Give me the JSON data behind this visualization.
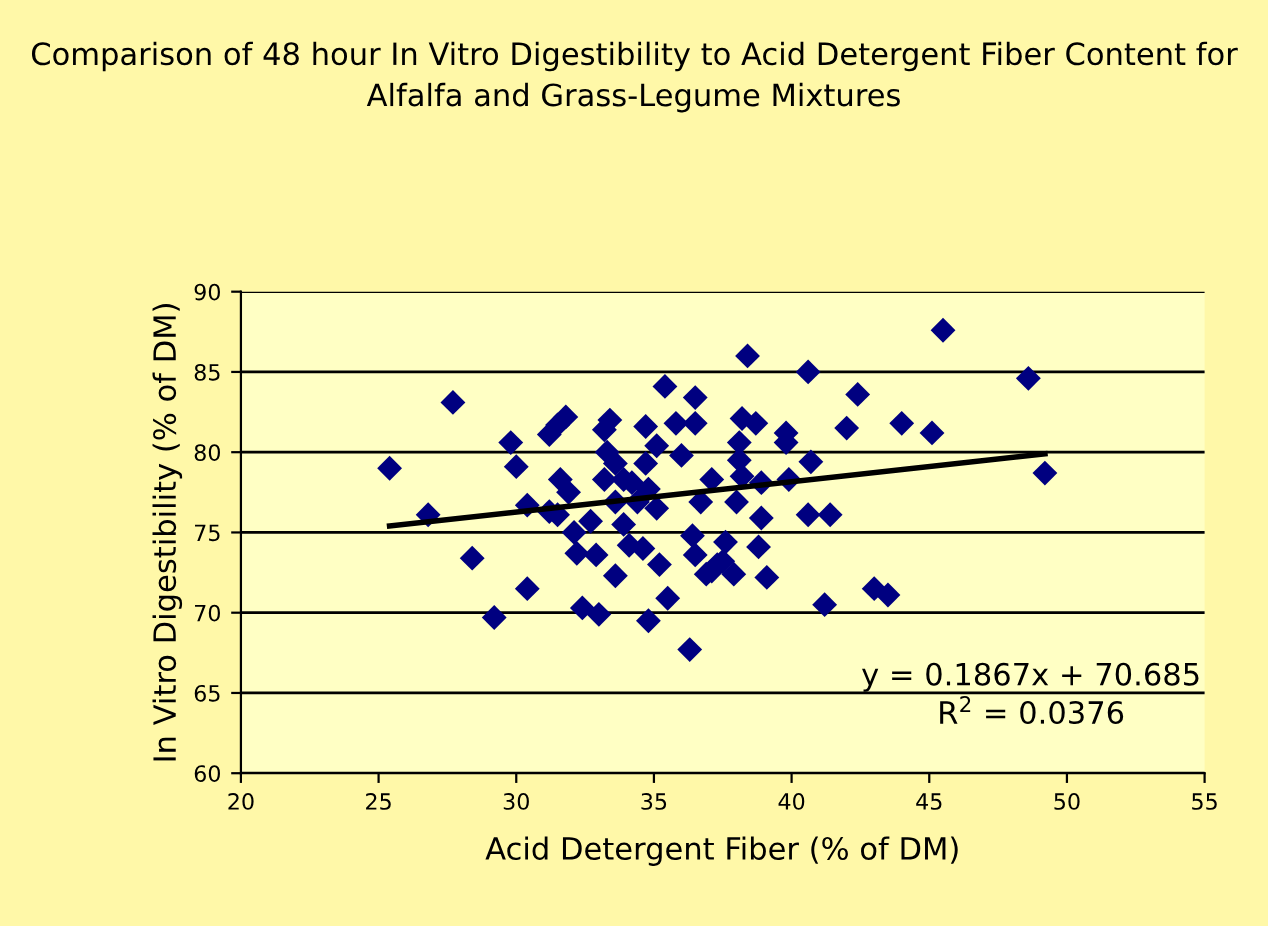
{
  "chart_data": {
    "type": "scatter",
    "title": "Comparison of 48 hour In Vitro Digestibility to Acid Detergent Fiber Content for Alfalfa and Grass-Legume Mixtures",
    "xlabel": "Acid Detergent Fiber (% of DM)",
    "ylabel": "In Vitro Digestibility (% of DM)",
    "xlim": [
      20,
      55
    ],
    "xticks": [
      20,
      25,
      30,
      35,
      40,
      45,
      50,
      55
    ],
    "ylim": [
      60,
      90
    ],
    "yticks": [
      60,
      65,
      70,
      75,
      80,
      85,
      90
    ],
    "grid": "y",
    "series": [
      {
        "marker": "diamond",
        "color": "#000080",
        "x": [
          25.4,
          27.7,
          26.8,
          28.4,
          29.2,
          30.4,
          29.8,
          30.0,
          30.4,
          31.2,
          31.5,
          31.8,
          31.6,
          31.9,
          31.2,
          31.5,
          32.1,
          32.2,
          32.7,
          32.9,
          33.6,
          32.4,
          33.0,
          33.4,
          33.2,
          33.3,
          33.6,
          33.2,
          33.9,
          33.6,
          34.2,
          33.9,
          34.1,
          34.6,
          34.7,
          35.1,
          34.7,
          34.8,
          34.4,
          35.1,
          35.2,
          35.5,
          34.8,
          36.3,
          35.4,
          35.8,
          36.5,
          36.5,
          36.0,
          37.1,
          36.7,
          36.4,
          36.5,
          37.1,
          37.5,
          45.5,
          38.4,
          40.6,
          48.6,
          42.4,
          38.2,
          38.7,
          42.0,
          44.0,
          45.1,
          39.8,
          39.8,
          38.1,
          38.1,
          40.7,
          49.2,
          38.2,
          38.9,
          39.9,
          38.0,
          38.9,
          40.6,
          41.4,
          37.6,
          38.8,
          36.9,
          37.3,
          37.9,
          39.1,
          41.2,
          43.0,
          43.5
        ],
        "values": [
          79.0,
          83.1,
          76.1,
          73.4,
          69.7,
          71.5,
          80.6,
          79.1,
          76.7,
          81.1,
          81.7,
          82.2,
          78.3,
          77.5,
          76.3,
          76.1,
          75.0,
          73.7,
          75.7,
          73.6,
          72.3,
          70.3,
          69.9,
          82.0,
          81.4,
          80.0,
          79.3,
          78.3,
          78.3,
          76.9,
          78.1,
          75.5,
          74.2,
          74.0,
          81.6,
          80.4,
          79.3,
          77.7,
          76.9,
          76.5,
          73.0,
          70.9,
          69.5,
          67.7,
          84.1,
          81.8,
          83.4,
          81.8,
          79.8,
          78.3,
          76.9,
          74.8,
          73.6,
          72.6,
          73.2,
          87.6,
          86.0,
          85.0,
          84.6,
          83.6,
          82.1,
          81.8,
          81.5,
          81.8,
          81.2,
          81.2,
          80.6,
          80.6,
          79.5,
          79.4,
          78.7,
          78.5,
          78.1,
          78.3,
          76.9,
          75.9,
          76.1,
          76.1,
          74.4,
          74.1,
          72.4,
          73.0,
          72.4,
          72.2,
          70.5,
          71.5,
          71.1
        ]
      },
      {
        "type": "line",
        "color": "#000000",
        "x": [
          25.4,
          49.2
        ],
        "values": [
          75.4,
          79.9
        ]
      }
    ],
    "annotations": [
      "y = 0.1867x + 70.685",
      "R$^{2}$ = 0.0376"
    ]
  }
}
